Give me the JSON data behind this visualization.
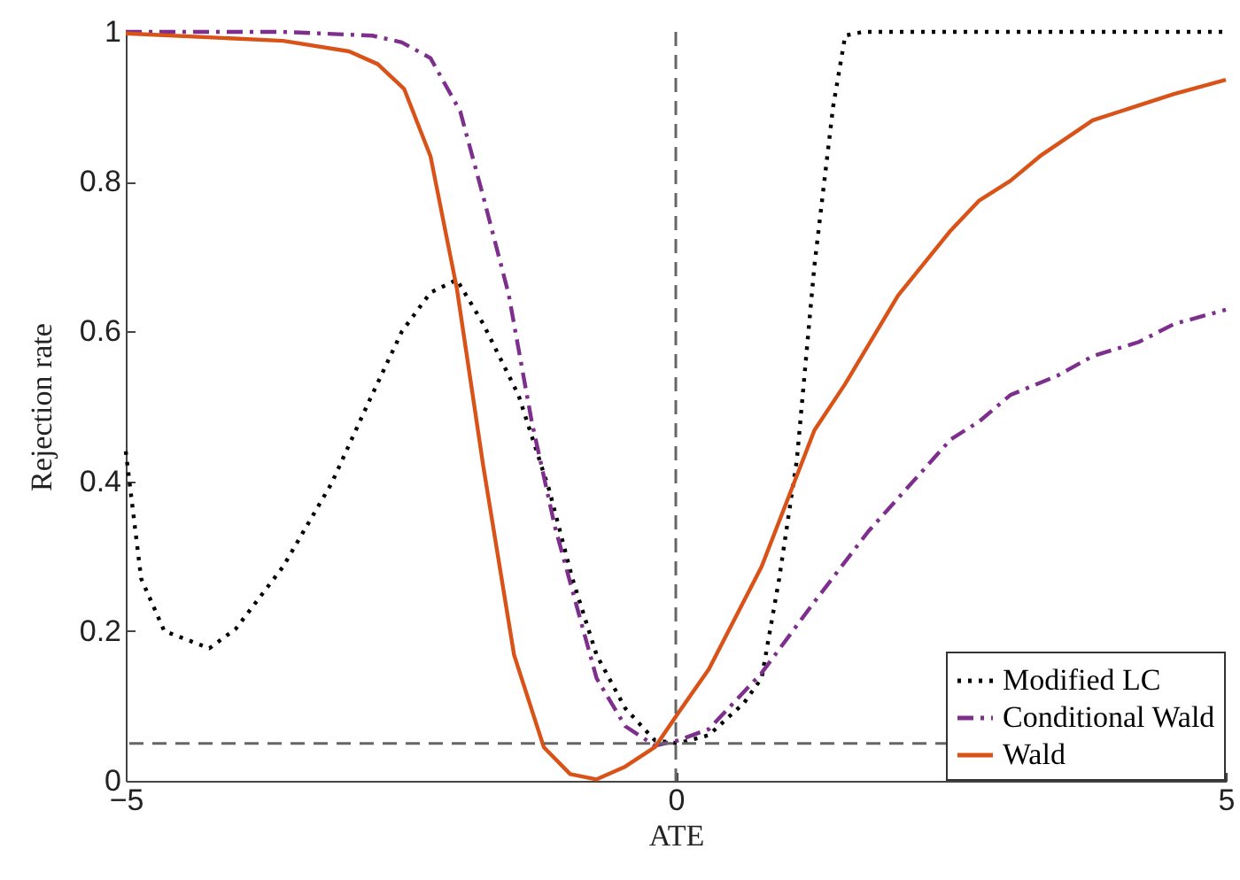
{
  "chart_data": {
    "type": "line",
    "xlabel": "ATE",
    "ylabel": "Rejection rate",
    "xlim": [
      -5,
      5
    ],
    "xticks": [
      -5,
      0,
      5
    ],
    "ylim": [
      0,
      1
    ],
    "yticks": [
      0,
      0.2,
      0.4,
      0.6,
      0.8,
      1
    ],
    "grid": false,
    "legend": "bottom right",
    "marker": "none",
    "series": [
      {
        "name": "Modified LC",
        "color": "#000000",
        "line_style": "dotted",
        "x": [
          -5,
          -4.86,
          -4.65,
          -4.24,
          -4.0,
          -3.57,
          -3.13,
          -2.81,
          -2.49,
          -2.23,
          -1.99,
          -1.75,
          -1.43,
          -1.15,
          -0.94,
          -0.72,
          -0.46,
          -0.19,
          0.02,
          0.3,
          0.62,
          0.78,
          0.94,
          1.1,
          1.26,
          1.43,
          1.54,
          1.7,
          5
        ],
        "values": [
          0.44,
          0.27,
          0.2,
          0.177,
          0.203,
          0.286,
          0.397,
          0.5,
          0.6,
          0.652,
          0.669,
          0.61,
          0.515,
          0.388,
          0.27,
          0.168,
          0.097,
          0.054,
          0.05,
          0.061,
          0.104,
          0.137,
          0.27,
          0.428,
          0.688,
          0.9,
          0.995,
          1,
          1
        ]
      },
      {
        "name": "Conditional Wald",
        "color": "#7e2f8e",
        "line_style": "dashdot",
        "x": [
          -5,
          -3.57,
          -2.76,
          -2.49,
          -2.23,
          -1.96,
          -1.75,
          -1.52,
          -1.31,
          -1.1,
          -0.88,
          -0.72,
          -0.46,
          -0.19,
          0.02,
          0.3,
          0.78,
          1.26,
          1.75,
          2.5,
          2.76,
          3.04,
          3.47,
          3.79,
          4.21,
          4.53,
          5
        ],
        "values": [
          1,
          1,
          0.995,
          0.986,
          0.965,
          0.894,
          0.78,
          0.65,
          0.48,
          0.34,
          0.222,
          0.137,
          0.073,
          0.047,
          0.054,
          0.069,
          0.144,
          0.239,
          0.333,
          0.456,
          0.48,
          0.515,
          0.541,
          0.567,
          0.586,
          0.61,
          0.629
        ]
      },
      {
        "name": "Wald",
        "color": "#d95319",
        "line_style": "solid",
        "x": [
          -5,
          -3.57,
          -2.97,
          -2.71,
          -2.47,
          -2.23,
          -1.99,
          -1.75,
          -1.47,
          -1.2,
          -0.96,
          -0.72,
          -0.46,
          -0.19,
          0.02,
          0.3,
          0.78,
          1.26,
          1.54,
          2.02,
          2.5,
          2.76,
          3.04,
          3.31,
          3.79,
          4.53,
          5
        ],
        "values": [
          0.998,
          0.988,
          0.974,
          0.957,
          0.924,
          0.834,
          0.657,
          0.42,
          0.168,
          0.045,
          0.009,
          0.002,
          0.019,
          0.045,
          0.09,
          0.149,
          0.286,
          0.468,
          0.53,
          0.648,
          0.735,
          0.775,
          0.801,
          0.834,
          0.882,
          0.917,
          0.936
        ]
      }
    ],
    "ref_lines": [
      {
        "axis": "x",
        "value": 0,
        "color": "#666666",
        "line_style": "dashed"
      },
      {
        "axis": "y",
        "value": 0.05,
        "color": "#666666",
        "line_style": "dashed"
      }
    ]
  }
}
